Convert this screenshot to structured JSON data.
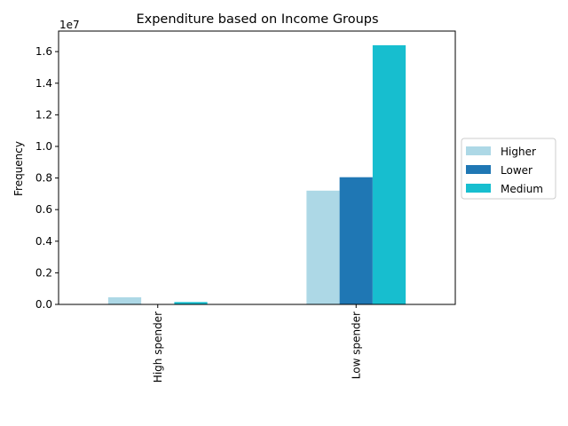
{
  "chart_data": {
    "type": "bar",
    "title": "Expenditure based on Income Groups",
    "xlabel": "",
    "ylabel": "Frequency",
    "y_offset_label": "1e7",
    "categories": [
      "High spender",
      "Low spender"
    ],
    "series": [
      {
        "name": "Higher",
        "color": "#add8e6",
        "values": [
          450000,
          7200000
        ]
      },
      {
        "name": "Lower",
        "color": "#1f77b4",
        "values": [
          0,
          8050000
        ]
      },
      {
        "name": "Medium",
        "color": "#17becf",
        "values": [
          150000,
          16400000
        ]
      }
    ],
    "ylim": [
      0,
      17300000
    ],
    "yticks": [
      0,
      2000000,
      4000000,
      6000000,
      8000000,
      10000000,
      12000000,
      14000000,
      16000000
    ],
    "ytick_labels": [
      "0.0",
      "0.2",
      "0.4",
      "0.6",
      "0.8",
      "1.0",
      "1.2",
      "1.4",
      "1.6"
    ],
    "grid": false,
    "legend_position": "center-right-outside"
  }
}
